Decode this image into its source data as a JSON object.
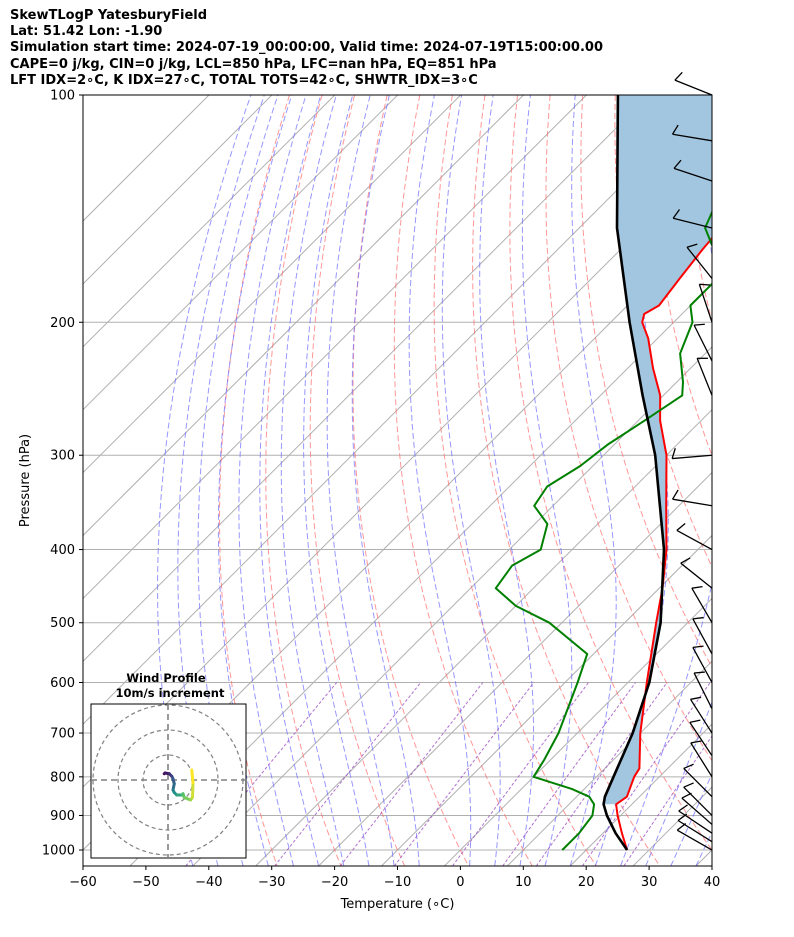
{
  "header": {
    "line1": "SkewTLogP YatesburyField",
    "line2": "Lat: 51.42   Lon: -1.90",
    "line3": "Simulation start time: 2024-07-19_00:00:00, Valid time: 2024-07-19T15:00:00.00",
    "line4": "CAPE=0 j/kg, CIN=0 j/kg, LCL=850 hPa, LFC=nan hPa, EQ=851 hPa",
    "line5": "LFT IDX=2∘C, K IDX=27∘C, TOTAL TOTS=42∘C, SHWTR_IDX=3∘C"
  },
  "chart_data": {
    "type": "line",
    "chart_kind": "skew-t log-p",
    "xlabel": "Temperature (∘C)",
    "ylabel": "Pressure (hPa)",
    "xlim": [
      -60,
      40
    ],
    "ylim": [
      1050,
      100
    ],
    "y_scale": "log",
    "skew": true,
    "x_ticks": [
      "−60",
      "−50",
      "−40",
      "−30",
      "−20",
      "−10",
      "0",
      "10",
      "20",
      "30",
      "40"
    ],
    "x_tick_values": [
      -60,
      -50,
      -40,
      -30,
      -20,
      -10,
      0,
      10,
      20,
      30,
      40
    ],
    "y_ticks": [
      "100",
      "200",
      "300",
      "400",
      "500",
      "600",
      "700",
      "800",
      "900",
      "1000"
    ],
    "y_tick_values": [
      100,
      200,
      300,
      400,
      500,
      600,
      700,
      800,
      900,
      1000
    ],
    "grid": true,
    "colors": {
      "temperature": "#ff0000",
      "dewpoint": "#008000",
      "parcel": "#000000",
      "cape_fill": "#a2c6e0",
      "dry_adiabats": "#ff6b6b",
      "moist_adiabats": "#6b6bff",
      "mixing_ratio": "#9c4fc4",
      "isotherms": "#b0b0b0"
    },
    "series": [
      {
        "key": "temperature",
        "p": [
          1000,
          950,
          900,
          870,
          850,
          800,
          780,
          700,
          600,
          500,
          450,
          400,
          350,
          300,
          270,
          250,
          230,
          210,
          200,
          195,
          190,
          175,
          160,
          150,
          140,
          130,
          120,
          100
        ],
        "t": [
          26.5,
          23,
          19.5,
          17.5,
          18,
          16,
          15.5,
          10,
          3,
          -5,
          -9.5,
          -15,
          -22,
          -30,
          -36.5,
          -40.5,
          -46,
          -51.5,
          -55,
          -56,
          -55,
          -56,
          -57,
          -57.5,
          -59,
          -59.5,
          -60,
          -61.5
        ]
      },
      {
        "key": "dewpoint",
        "p": [
          1000,
          950,
          900,
          870,
          850,
          830,
          800,
          760,
          700,
          600,
          550,
          500,
          475,
          450,
          420,
          400,
          370,
          350,
          330,
          310,
          290,
          270,
          250,
          240,
          220,
          200,
          190,
          175,
          165,
          150,
          140,
          100
        ],
        "t": [
          16.2,
          16.2,
          15.5,
          14,
          12,
          8,
          0,
          -1,
          -3,
          -8,
          -11,
          -22,
          -30,
          -36,
          -37,
          -35,
          -38,
          -43,
          -44,
          -42,
          -41,
          -39,
          -37,
          -39,
          -44,
          -47,
          -50,
          -50,
          -53,
          -60,
          -62,
          -64
        ]
      },
      {
        "key": "parcel",
        "p": [
          1000,
          950,
          900,
          870,
          850,
          800,
          700,
          600,
          500,
          400,
          300,
          250,
          200,
          150,
          100
        ],
        "t": [
          26.5,
          22,
          17.8,
          15.5,
          14.5,
          12.7,
          8.8,
          3.4,
          -4.3,
          -15.4,
          -31.8,
          -43.3,
          -57,
          -74,
          -95
        ]
      }
    ],
    "wind_barbs": [
      {
        "p": 1000,
        "u": -3.5,
        "v": 2
      },
      {
        "p": 975,
        "u": -4,
        "v": 2.5
      },
      {
        "p": 950,
        "u": -4.5,
        "v": 3
      },
      {
        "p": 925,
        "u": -4,
        "v": 3.5
      },
      {
        "p": 900,
        "u": -3.5,
        "v": 3.5
      },
      {
        "p": 850,
        "u": -3,
        "v": 3
      },
      {
        "p": 800,
        "u": -2.5,
        "v": 4
      },
      {
        "p": 750,
        "u": -3,
        "v": 4.5
      },
      {
        "p": 700,
        "u": -3.5,
        "v": 5.5
      },
      {
        "p": 650,
        "u": -2.5,
        "v": 5
      },
      {
        "p": 600,
        "u": -3,
        "v": 5.5
      },
      {
        "p": 550,
        "u": -3,
        "v": 5.5
      },
      {
        "p": 500,
        "u": -3.5,
        "v": 6
      },
      {
        "p": 450,
        "u": -5,
        "v": 4
      },
      {
        "p": 400,
        "u": -5.5,
        "v": 3
      },
      {
        "p": 350,
        "u": -6,
        "v": 1
      },
      {
        "p": 300,
        "u": -6,
        "v": -0.5
      },
      {
        "p": 250,
        "u": -2,
        "v": 5
      },
      {
        "p": 225,
        "u": -3,
        "v": 6
      },
      {
        "p": 200,
        "u": -2,
        "v": 6
      },
      {
        "p": 175,
        "u": -4,
        "v": 5
      },
      {
        "p": 150,
        "u": -6,
        "v": 1.5
      },
      {
        "p": 130,
        "u": -6,
        "v": 2
      },
      {
        "p": 115,
        "u": -6,
        "v": 1
      },
      {
        "p": 100,
        "u": -5,
        "v": 2
      }
    ],
    "inset": {
      "title_line1": "Wind Profile",
      "title_line2": "10m/s increment",
      "rings": [
        10,
        20,
        30
      ],
      "hodograph": [
        {
          "u": -1.5,
          "v": 2.5
        },
        {
          "u": -1.2,
          "v": 2.8
        },
        {
          "u": 0.5,
          "v": 2.5
        },
        {
          "u": 1.5,
          "v": 1.5
        },
        {
          "u": 2.0,
          "v": 0.5
        },
        {
          "u": 2.5,
          "v": -1.5
        },
        {
          "u": 2.0,
          "v": -4.0
        },
        {
          "u": 2.5,
          "v": -5.0
        },
        {
          "u": 3.5,
          "v": -6.0
        },
        {
          "u": 5.5,
          "v": -6.0
        },
        {
          "u": 6.0,
          "v": -5.5
        },
        {
          "u": 6.5,
          "v": -7.0
        },
        {
          "u": 9.0,
          "v": -8.0
        },
        {
          "u": 9.8,
          "v": -7.0
        },
        {
          "u": 10.0,
          "v": -1.0
        },
        {
          "u": 9.5,
          "v": 4.0
        }
      ]
    }
  }
}
